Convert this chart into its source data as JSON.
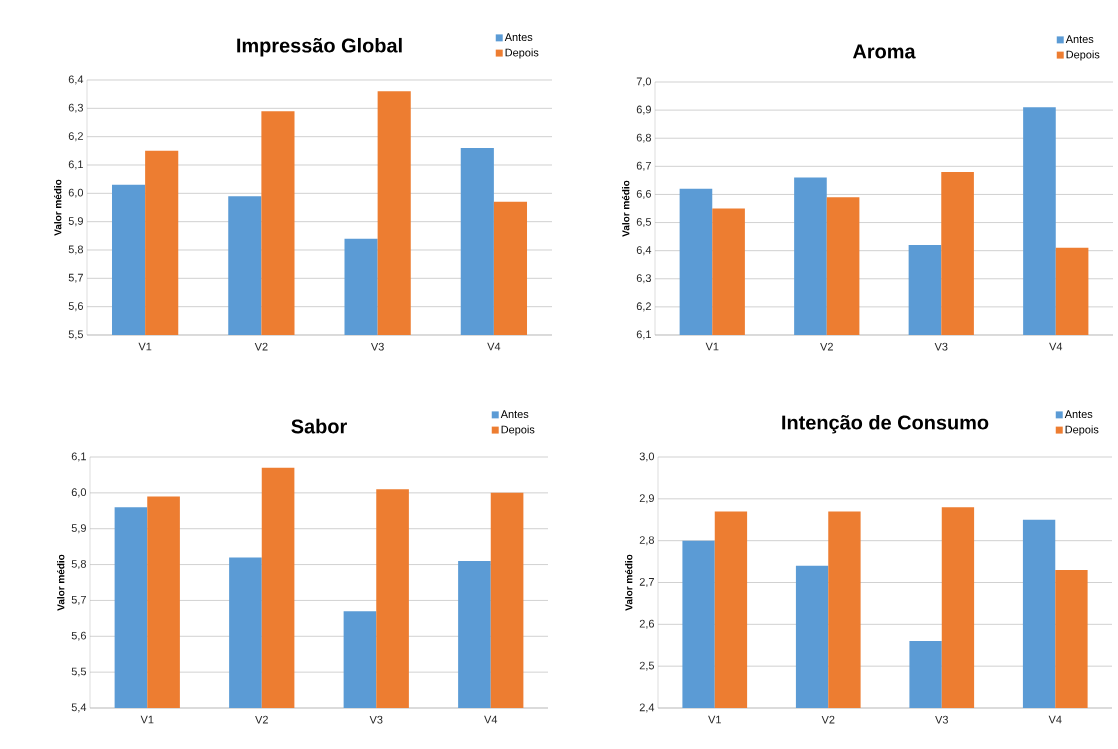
{
  "chart_data": [
    {
      "type": "bar",
      "title": "Impressão Global",
      "ylabel": "Valor médio",
      "categories": [
        "V1",
        "V2",
        "V3",
        "V4"
      ],
      "series": [
        {
          "name": "Antes",
          "color": "#5b9bd5",
          "values": [
            6.03,
            5.99,
            5.84,
            6.16
          ]
        },
        {
          "name": "Depois",
          "color": "#ed7d31",
          "values": [
            6.15,
            6.29,
            6.36,
            5.97
          ]
        }
      ],
      "ylim": [
        5.5,
        6.4
      ],
      "yticks": [
        {
          "value": 5.5,
          "label": "5,5"
        },
        {
          "value": 5.6,
          "label": "5,6"
        },
        {
          "value": 5.7,
          "label": "5,7"
        },
        {
          "value": 5.8,
          "label": "5,8"
        },
        {
          "value": 5.9,
          "label": "5,9"
        },
        {
          "value": 6.0,
          "label": "6,0"
        },
        {
          "value": 6.1,
          "label": "6,1"
        },
        {
          "value": 6.2,
          "label": "6,2"
        },
        {
          "value": 6.3,
          "label": "6,3"
        },
        {
          "value": 6.4,
          "label": "6,4"
        }
      ],
      "grid": "y",
      "legend": "top right"
    },
    {
      "type": "bar",
      "title": "Aroma",
      "ylabel": "Valor médio",
      "categories": [
        "V1",
        "V2",
        "V3",
        "V4"
      ],
      "series": [
        {
          "name": "Antes",
          "color": "#5b9bd5",
          "values": [
            6.62,
            6.66,
            6.42,
            6.91
          ]
        },
        {
          "name": "Depois",
          "color": "#ed7d31",
          "values": [
            6.55,
            6.59,
            6.68,
            6.41
          ]
        }
      ],
      "ylim": [
        6.1,
        7.0
      ],
      "yticks": [
        {
          "value": 6.1,
          "label": "6,1"
        },
        {
          "value": 6.2,
          "label": "6,2"
        },
        {
          "value": 6.3,
          "label": "6,3"
        },
        {
          "value": 6.4,
          "label": "6,4"
        },
        {
          "value": 6.5,
          "label": "6,5"
        },
        {
          "value": 6.6,
          "label": "6,6"
        },
        {
          "value": 6.7,
          "label": "6,7"
        },
        {
          "value": 6.8,
          "label": "6,8"
        },
        {
          "value": 6.9,
          "label": "6,9"
        },
        {
          "value": 7.0,
          "label": "7,0"
        }
      ],
      "grid": "y",
      "legend": "top right"
    },
    {
      "type": "bar",
      "title": "Sabor",
      "ylabel": "Valor médio",
      "categories": [
        "V1",
        "V2",
        "V3",
        "V4"
      ],
      "series": [
        {
          "name": "Antes",
          "color": "#5b9bd5",
          "values": [
            5.96,
            5.82,
            5.67,
            5.81
          ]
        },
        {
          "name": "Depois",
          "color": "#ed7d31",
          "values": [
            5.99,
            6.07,
            6.01,
            6.0
          ]
        }
      ],
      "ylim": [
        5.4,
        6.1
      ],
      "yticks": [
        {
          "value": 5.4,
          "label": "5,4"
        },
        {
          "value": 5.5,
          "label": "5,5"
        },
        {
          "value": 5.6,
          "label": "5,6"
        },
        {
          "value": 5.7,
          "label": "5,7"
        },
        {
          "value": 5.8,
          "label": "5,8"
        },
        {
          "value": 5.9,
          "label": "5,9"
        },
        {
          "value": 6.0,
          "label": "6,0"
        },
        {
          "value": 6.1,
          "label": "6,1"
        }
      ],
      "grid": "y",
      "legend": "top right"
    },
    {
      "type": "bar",
      "title": "Intenção de Consumo",
      "ylabel": "Valor médio",
      "categories": [
        "V1",
        "V2",
        "V3",
        "V4"
      ],
      "series": [
        {
          "name": "Antes",
          "color": "#5b9bd5",
          "values": [
            2.8,
            2.74,
            2.56,
            2.85
          ]
        },
        {
          "name": "Depois",
          "color": "#ed7d31",
          "values": [
            2.87,
            2.87,
            2.88,
            2.73
          ]
        }
      ],
      "ylim": [
        2.4,
        3.0
      ],
      "yticks": [
        {
          "value": 2.4,
          "label": "2,4"
        },
        {
          "value": 2.5,
          "label": "2,5"
        },
        {
          "value": 2.6,
          "label": "2,6"
        },
        {
          "value": 2.7,
          "label": "2,7"
        },
        {
          "value": 2.8,
          "label": "2,8"
        },
        {
          "value": 2.9,
          "label": "2,9"
        },
        {
          "value": 3.0,
          "label": "3,0"
        }
      ],
      "grid": "y",
      "legend": "top right"
    }
  ]
}
